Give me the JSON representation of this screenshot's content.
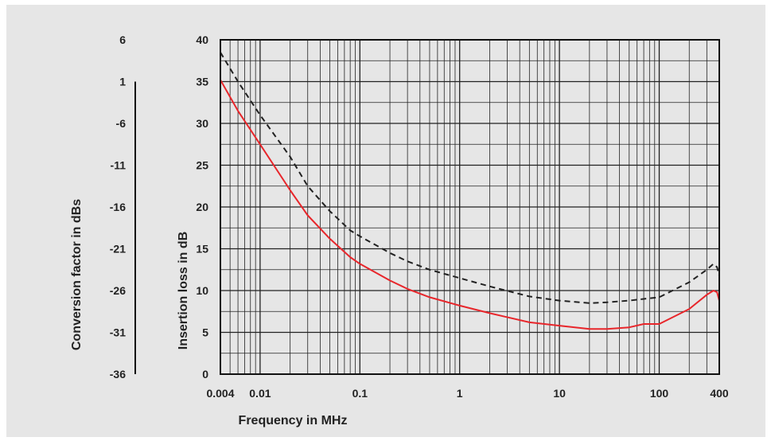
{
  "chart_data": {
    "type": "line",
    "xscale": "log",
    "xlim": [
      0.004,
      400
    ],
    "ylim": [
      0,
      40
    ],
    "xlabel": "Frequency in MHz",
    "ylabel": "Insertion loss in dB",
    "y2label": "Conversion factor in dBs",
    "x_ticks": [
      "0.004",
      "0.01",
      "0.1",
      "1",
      "10",
      "100",
      "400"
    ],
    "y_ticks": [
      "0",
      "5",
      "10",
      "15",
      "20",
      "25",
      "30",
      "35",
      "40"
    ],
    "y2_ticks": [
      "6",
      "1",
      "-6",
      "-11",
      "-16",
      "-21",
      "-26",
      "-31",
      "-36"
    ],
    "grid": true,
    "series": [
      {
        "color": "#e8262b",
        "style": "solid",
        "points": [
          [
            0.004,
            35.2
          ],
          [
            0.006,
            31.5
          ],
          [
            0.01,
            27.5
          ],
          [
            0.02,
            22.0
          ],
          [
            0.03,
            19.0
          ],
          [
            0.05,
            16.2
          ],
          [
            0.08,
            14.0
          ],
          [
            0.1,
            13.2
          ],
          [
            0.2,
            11.2
          ],
          [
            0.3,
            10.2
          ],
          [
            0.5,
            9.2
          ],
          [
            1,
            8.2
          ],
          [
            2,
            7.3
          ],
          [
            5,
            6.2
          ],
          [
            10,
            5.8
          ],
          [
            20,
            5.4
          ],
          [
            30,
            5.4
          ],
          [
            50,
            5.6
          ],
          [
            70,
            6.0
          ],
          [
            100,
            6.0
          ],
          [
            200,
            7.8
          ],
          [
            300,
            9.5
          ],
          [
            350,
            10.0
          ],
          [
            380,
            9.8
          ],
          [
            400,
            8.8
          ]
        ]
      },
      {
        "color": "#222222",
        "style": "dashed",
        "points": [
          [
            0.004,
            38.5
          ],
          [
            0.006,
            35.0
          ],
          [
            0.01,
            31.0
          ],
          [
            0.02,
            26.0
          ],
          [
            0.03,
            22.5
          ],
          [
            0.05,
            19.5
          ],
          [
            0.08,
            17.2
          ],
          [
            0.1,
            16.5
          ],
          [
            0.2,
            14.5
          ],
          [
            0.3,
            13.5
          ],
          [
            0.5,
            12.5
          ],
          [
            1,
            11.5
          ],
          [
            2,
            10.5
          ],
          [
            5,
            9.3
          ],
          [
            10,
            8.8
          ],
          [
            20,
            8.5
          ],
          [
            30,
            8.6
          ],
          [
            50,
            8.8
          ],
          [
            70,
            9.0
          ],
          [
            100,
            9.2
          ],
          [
            200,
            11.0
          ],
          [
            300,
            12.5
          ],
          [
            350,
            13.2
          ],
          [
            380,
            12.8
          ],
          [
            400,
            11.8
          ]
        ]
      }
    ]
  }
}
